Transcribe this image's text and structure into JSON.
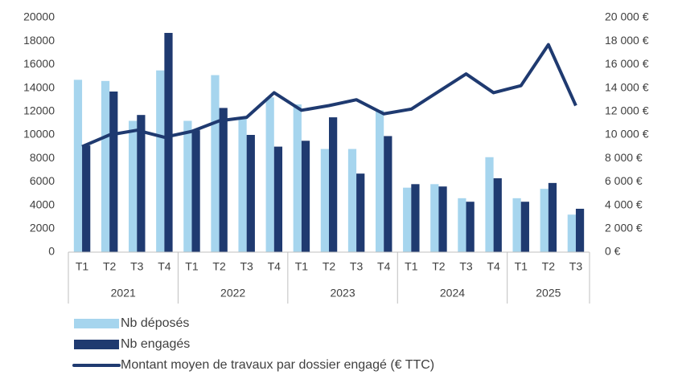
{
  "chart_data": {
    "type": "bar_line",
    "groups": [
      {
        "name": "2021",
        "categories": [
          "T1",
          "T2",
          "T3",
          "T4"
        ]
      },
      {
        "name": "2022",
        "categories": [
          "T1",
          "T2",
          "T3",
          "T4"
        ]
      },
      {
        "name": "2023",
        "categories": [
          "T1",
          "T2",
          "T3",
          "T4"
        ]
      },
      {
        "name": "2024",
        "categories": [
          "T1",
          "T2",
          "T3",
          "T4"
        ]
      },
      {
        "name": "2025",
        "categories": [
          "T1",
          "T2",
          "T3"
        ]
      }
    ],
    "series": [
      {
        "name": "Nb déposés",
        "type": "bar",
        "color": "#a6d5ee",
        "values": [
          14700,
          14600,
          11200,
          15500,
          11200,
          15100,
          11500,
          13200,
          12600,
          8800,
          8800,
          12100,
          5500,
          5800,
          4600,
          8100,
          4600,
          5400,
          3200
        ]
      },
      {
        "name": "Nb engagés",
        "type": "bar",
        "color": "#1f3a70",
        "values": [
          9100,
          13700,
          11700,
          18700,
          10400,
          12300,
          10000,
          9000,
          9500,
          11500,
          6700,
          9900,
          5800,
          5600,
          4300,
          6300,
          4300,
          5900,
          3700
        ]
      },
      {
        "name": "Montant  moyen de travaux par dossier engagé (€ TTC)",
        "type": "line",
        "axis": "y2",
        "color": "#1f3a70",
        "values": [
          9000,
          10000,
          10400,
          9800,
          10300,
          11200,
          11500,
          13600,
          12100,
          12500,
          13000,
          11800,
          12200,
          13700,
          15200,
          13600,
          14200,
          17700,
          12500
        ]
      }
    ],
    "ylim": [
      0,
      20000
    ],
    "yticks": [
      0,
      2000,
      4000,
      6000,
      8000,
      10000,
      12000,
      14000,
      16000,
      18000,
      20000
    ],
    "y2lim": [
      0,
      20000
    ],
    "y2ticks": [
      {
        "value": 0,
        "label": "0 €"
      },
      {
        "value": 2000,
        "label": "2 000 €"
      },
      {
        "value": 4000,
        "label": "4 000 €"
      },
      {
        "value": 6000,
        "label": "6 000 €"
      },
      {
        "value": 8000,
        "label": "8 000 €"
      },
      {
        "value": 10000,
        "label": "10 000 €"
      },
      {
        "value": 12000,
        "label": "12 000 €"
      },
      {
        "value": 14000,
        "label": "14 000 €"
      },
      {
        "value": 16000,
        "label": "16 000 €"
      },
      {
        "value": 18000,
        "label": "18 000 €"
      },
      {
        "value": 20000,
        "label": "20 000 €"
      }
    ],
    "grid": false,
    "legend": "bottom-left"
  }
}
